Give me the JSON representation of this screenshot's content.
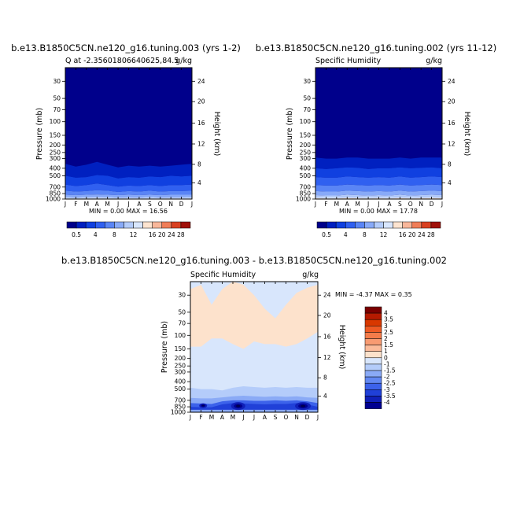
{
  "panels": [
    {
      "id": "p1",
      "title": "b.e13.B1850C5CN.ne120_g16.tuning.003 (yrs 1-2)",
      "left_label": "Q at -2.35601806640625,84.5",
      "right_label": "g/kg",
      "ylabel": "Pressure (mb)",
      "y2label": "Height (km)",
      "min_max": "MIN =    0.00 MAX =   16.56"
    },
    {
      "id": "p2",
      "title": "b.e13.B1850C5CN.ne120_g16.tuning.002 (yrs 11-12)",
      "left_label": "Specific Humidity",
      "right_label": "g/kg",
      "ylabel": "Pressure (mb)",
      "y2label": "Height (km)",
      "min_max": "MIN =    0.00 MAX =   17.78"
    },
    {
      "id": "p3",
      "title": "b.e13.B1850C5CN.ne120_g16.tuning.003 - b.e13.B1850C5CN.ne120_g16.tuning.002",
      "left_label": "Specific Humidity",
      "right_label": "g/kg",
      "ylabel": "Pressure (mb)",
      "y2label": "Height (km)",
      "min_max": "MIN =   -4.37 MAX =    0.35"
    }
  ],
  "chart_data": [
    {
      "type": "heatmap",
      "panel": "p1",
      "x_tick_labels": [
        "J",
        "F",
        "M",
        "A",
        "M",
        "J",
        "J",
        "A",
        "S",
        "O",
        "N",
        "D",
        "J"
      ],
      "y_tick_labels": [
        "30",
        "50",
        "70",
        "100",
        "150",
        "200",
        "250",
        "300",
        "400",
        "500",
        "700",
        "850",
        "1000"
      ],
      "y2_tick_labels": [
        "4",
        "8",
        "12",
        "16",
        "20",
        "24"
      ],
      "y_scale": "log",
      "ylim": [
        1000,
        20
      ],
      "min": 0.0,
      "max": 16.56,
      "contour_levels": [
        0.5,
        2,
        4,
        6,
        8,
        10,
        12,
        14,
        16,
        20,
        24,
        28
      ],
      "contour_pressure_mb": [
        [
          350,
          380,
          360,
          330,
          360,
          390,
          370,
          380,
          370,
          380,
          370,
          360,
          350
        ],
        [
          500,
          530,
          520,
          490,
          500,
          540,
          520,
          530,
          510,
          520,
          500,
          510,
          500
        ],
        [
          650,
          680,
          660,
          630,
          660,
          690,
          670,
          680,
          660,
          680,
          660,
          660,
          650
        ],
        [
          780,
          800,
          790,
          770,
          780,
          810,
          790,
          800,
          780,
          800,
          790,
          790,
          780
        ],
        [
          880,
          890,
          880,
          870,
          880,
          890,
          880,
          890,
          880,
          890,
          880,
          880,
          880
        ],
        [
          940,
          950,
          940,
          935,
          940,
          950,
          945,
          950,
          940,
          950,
          945,
          945,
          940
        ]
      ]
    },
    {
      "type": "heatmap",
      "panel": "p2",
      "x_tick_labels": [
        "J",
        "F",
        "M",
        "A",
        "M",
        "J",
        "J",
        "A",
        "S",
        "O",
        "N",
        "D",
        "J"
      ],
      "y_tick_labels": [
        "30",
        "50",
        "70",
        "100",
        "150",
        "200",
        "250",
        "300",
        "400",
        "500",
        "700",
        "850",
        "1000"
      ],
      "y2_tick_labels": [
        "4",
        "8",
        "12",
        "16",
        "20",
        "24"
      ],
      "y_scale": "log",
      "ylim": [
        1000,
        20
      ],
      "min": 0.0,
      "max": 17.78,
      "contour_levels": [
        0.5,
        2,
        4,
        6,
        8,
        10,
        12,
        14,
        16,
        20,
        24,
        28
      ],
      "contour_pressure_mb": [
        [
          290,
          300,
          300,
          290,
          290,
          300,
          300,
          300,
          290,
          300,
          290,
          290,
          290
        ],
        [
          400,
          410,
          400,
          390,
          395,
          410,
          400,
          400,
          390,
          400,
          395,
          390,
          400
        ],
        [
          520,
          530,
          530,
          510,
          520,
          530,
          520,
          530,
          510,
          530,
          520,
          510,
          520
        ],
        [
          660,
          670,
          670,
          650,
          660,
          670,
          660,
          670,
          650,
          670,
          660,
          650,
          660
        ],
        [
          790,
          800,
          800,
          780,
          790,
          800,
          790,
          800,
          780,
          800,
          790,
          780,
          790
        ],
        [
          890,
          900,
          900,
          880,
          890,
          900,
          890,
          900,
          880,
          900,
          890,
          880,
          890
        ],
        [
          950,
          955,
          955,
          945,
          950,
          955,
          950,
          955,
          945,
          955,
          950,
          945,
          950
        ]
      ]
    },
    {
      "type": "heatmap",
      "panel": "p3",
      "x_tick_labels": [
        "J",
        "F",
        "M",
        "A",
        "M",
        "J",
        "J",
        "A",
        "S",
        "O",
        "N",
        "D",
        "J"
      ],
      "y_tick_labels": [
        "30",
        "50",
        "70",
        "100",
        "150",
        "200",
        "250",
        "300",
        "400",
        "500",
        "700",
        "850",
        "1000"
      ],
      "y2_tick_labels": [
        "4",
        "8",
        "12",
        "16",
        "20",
        "24"
      ],
      "y_scale": "log",
      "ylim": [
        1000,
        20
      ],
      "min": -4.37,
      "max": 0.35,
      "contour_levels": [
        -4,
        -3.5,
        -3,
        -2.5,
        -2,
        -1.5,
        -1,
        0,
        1,
        1.5,
        2,
        2.5,
        3,
        3.5,
        4
      ]
    }
  ],
  "colorbar": {
    "levels": [
      "0.5",
      "2",
      "4",
      "6",
      "8",
      "10",
      "12",
      "14",
      "16",
      "20",
      "24",
      "28"
    ],
    "labels": [
      "0.5",
      "4",
      "8",
      "12",
      "16",
      "20",
      "24",
      "28"
    ],
    "colors": [
      "#00008b",
      "#0020c0",
      "#1040e0",
      "#3060f0",
      "#5a85f5",
      "#88aaf8",
      "#b4ccfa",
      "#d8e6fc",
      "#fde4d0",
      "#f9b79a",
      "#f07d58",
      "#d94020",
      "#a01008"
    ]
  },
  "diff_colorbar": {
    "labels": [
      "4",
      "3.5",
      "3",
      "2.5",
      "2",
      "1.5",
      "1",
      "0",
      "-1",
      "-1.5",
      "-2",
      "-2.5",
      "-3",
      "-3.5",
      "-4"
    ],
    "colors": [
      "#7a0000",
      "#b51a00",
      "#d83800",
      "#ee5a24",
      "#f47c4a",
      "#f89b72",
      "#fbbb9a",
      "#fde2cc",
      "#d8e6fc",
      "#b4ccfa",
      "#8aaaf6",
      "#6288f2",
      "#3c62ea",
      "#2040d8",
      "#1020b8",
      "#000090"
    ]
  }
}
